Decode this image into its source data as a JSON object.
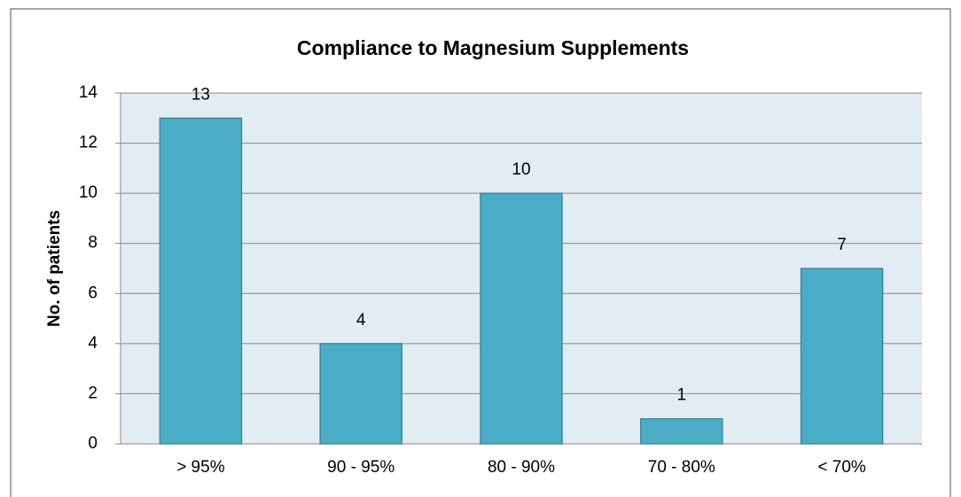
{
  "chart_data": {
    "type": "bar",
    "title": "Compliance to Magnesium Supplements",
    "y_label": "No. of patients",
    "categories": [
      "> 95%",
      "90 - 95%",
      "80 - 90%",
      "70 - 80%",
      "< 70%"
    ],
    "values": [
      13,
      4,
      10,
      1,
      7
    ],
    "color": "#4bacc6",
    "ylim": [
      0,
      14
    ],
    "yticks": [
      0,
      2,
      4,
      6,
      8,
      10,
      12,
      14
    ],
    "grid": true
  }
}
